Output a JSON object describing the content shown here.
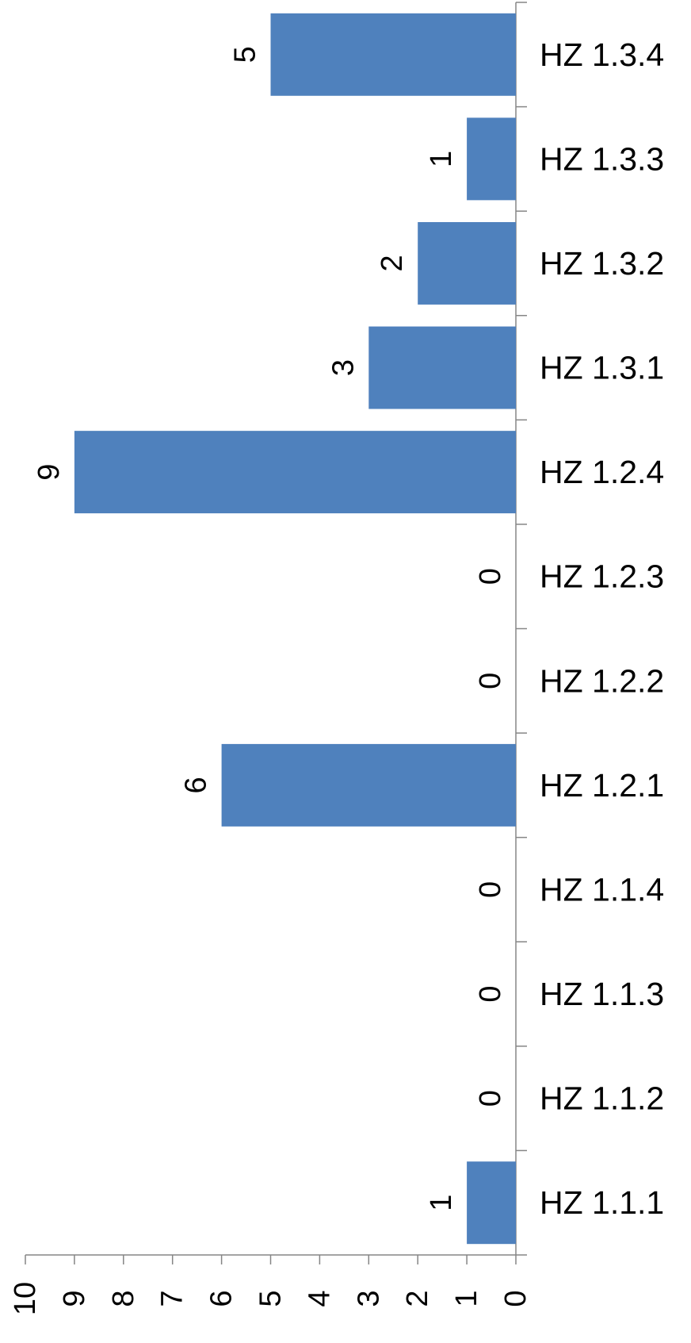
{
  "chart_data": {
    "type": "bar",
    "orientation": "horizontal",
    "categories": [
      "HZ 1.1.1",
      "HZ 1.1.2",
      "HZ 1.1.3",
      "HZ 1.1.4",
      "HZ 1.2.1",
      "HZ 1.2.2",
      "HZ 1.2.3",
      "HZ 1.2.4",
      "HZ 1.3.1",
      "HZ 1.3.2",
      "HZ 1.3.3",
      "HZ 1.3.4"
    ],
    "values": [
      1,
      0,
      0,
      0,
      6,
      0,
      0,
      9,
      3,
      2,
      1,
      5
    ],
    "xlim": [
      0,
      10
    ],
    "ticks": [
      0,
      1,
      2,
      3,
      4,
      5,
      6,
      7,
      8,
      9,
      10
    ],
    "title": "",
    "xlabel": "",
    "ylabel": "",
    "grid": false,
    "legend": "none",
    "bar_color": "#4F81BD",
    "axis_color": "#868686",
    "data_labels": true
  }
}
